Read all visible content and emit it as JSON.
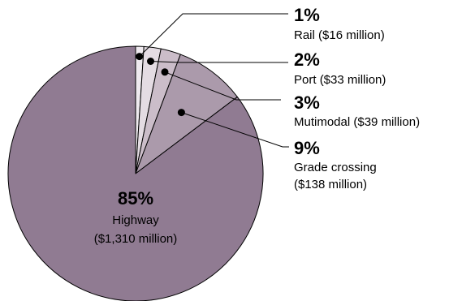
{
  "chart_data": {
    "type": "pie",
    "colors": {
      "slice_edge": "#000000",
      "leader_line": "#000000",
      "marker": "#000000"
    },
    "slices": [
      {
        "key": "rail",
        "percent_label": "1%",
        "name": "Rail",
        "amount": "($16 million)",
        "value": 16,
        "color": "#efeaef"
      },
      {
        "key": "port",
        "percent_label": "2%",
        "name": "Port",
        "amount": "($33 million)",
        "value": 33,
        "color": "#e4dce3"
      },
      {
        "key": "multimodal",
        "percent_label": "3%",
        "name": "Mutimodal",
        "amount": "($39 million)",
        "value": 39,
        "color": "#cbbdc9"
      },
      {
        "key": "grade",
        "percent_label": "9%",
        "name": "Grade crossing",
        "amount": "($138 million)",
        "value": 138,
        "color": "#ab9aab"
      },
      {
        "key": "highway",
        "percent_label": "85%",
        "name": "Highway",
        "amount": "($1,310 million)",
        "value": 1310,
        "color": "#907b92"
      }
    ]
  }
}
